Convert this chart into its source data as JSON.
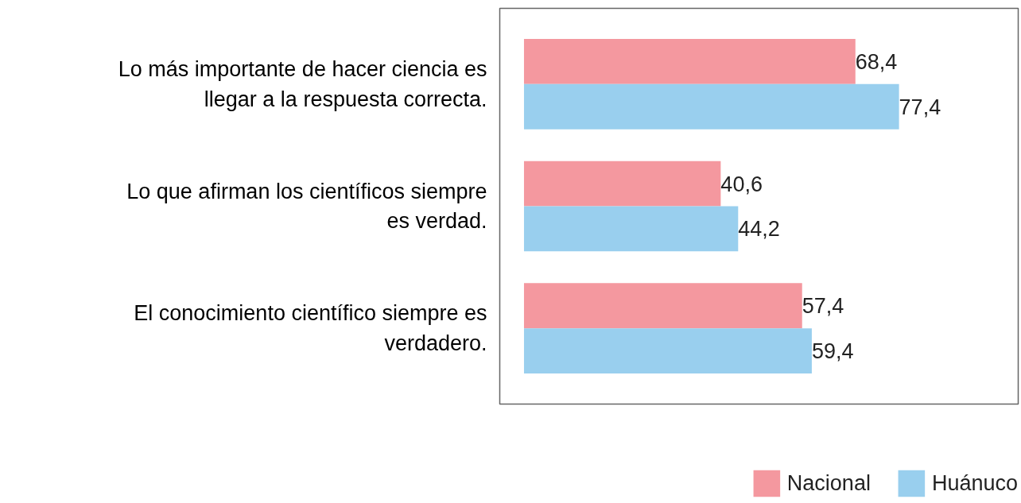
{
  "chart_data": {
    "type": "bar",
    "orientation": "horizontal",
    "categories": [
      "Lo más importante de hacer ciencia es llegar a la respuesta correcta.",
      "Lo que afirman los científicos siempre es verdad.",
      "El conocimiento científico siempre es verdadero."
    ],
    "series": [
      {
        "name": "Nacional",
        "color": "#f4989f",
        "values": [
          68.4,
          40.6,
          57.4
        ],
        "value_labels": [
          "68,4",
          "40,6",
          "57,4"
        ]
      },
      {
        "name": "Huánuco",
        "color": "#99cfee",
        "values": [
          77.4,
          44.2,
          59.4
        ],
        "value_labels": [
          "77,4",
          "44,2",
          "59,4"
        ]
      }
    ],
    "xlim": [
      -5,
      102
    ],
    "legend": "bottom right"
  }
}
